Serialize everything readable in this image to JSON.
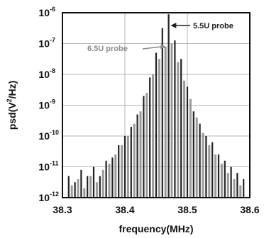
{
  "chart_data": {
    "type": "line",
    "title": "",
    "xlabel": "frequency(MHz)",
    "ylabel_base": "psd(V",
    "ylabel_sup": "2",
    "ylabel_tail": "/Hz)",
    "xlim": [
      38.3,
      38.6
    ],
    "ylim_log10": [
      -12,
      -6
    ],
    "y_scale": "log",
    "grid": true,
    "x_ticks": [
      {
        "value": 38.3,
        "label": "38.3"
      },
      {
        "value": 38.4,
        "label": "38.4"
      },
      {
        "value": 38.5,
        "label": "38.5"
      },
      {
        "value": 38.6,
        "label": "38.6"
      }
    ],
    "y_ticks": [
      {
        "exp": -6,
        "base": "10",
        "sup": "-6"
      },
      {
        "exp": -7,
        "base": "10",
        "sup": "-7"
      },
      {
        "exp": -8,
        "base": "10",
        "sup": "-8"
      },
      {
        "exp": -9,
        "base": "10",
        "sup": "-9"
      },
      {
        "exp": -10,
        "base": "10",
        "sup": "-10"
      },
      {
        "exp": -11,
        "base": "10",
        "sup": "-11"
      },
      {
        "exp": -12,
        "base": "10",
        "sup": "-12"
      }
    ],
    "series": [
      {
        "name": "5.5U probe",
        "color": "#222222",
        "x": [
          38.31,
          38.32,
          38.33,
          38.34,
          38.35,
          38.36,
          38.37,
          38.38,
          38.39,
          38.4,
          38.41,
          38.42,
          38.43,
          38.44,
          38.45,
          38.46,
          38.47,
          38.48,
          38.49,
          38.5,
          38.51,
          38.52,
          38.53,
          38.54,
          38.55,
          38.56,
          38.57,
          38.58,
          38.59
        ],
        "log10_y": [
          -11.3,
          -11.5,
          -11.1,
          -11.3,
          -11.0,
          -11.3,
          -10.8,
          -10.7,
          -10.3,
          -10.0,
          -9.7,
          -9.3,
          -8.7,
          -8.1,
          -7.3,
          -6.5,
          -6.05,
          -6.9,
          -7.5,
          -8.4,
          -9.2,
          -9.6,
          -10.0,
          -10.2,
          -10.6,
          -10.8,
          -11.0,
          -11.2,
          -11.4
        ]
      },
      {
        "name": "6.5U probe",
        "color": "#9a9a9a",
        "x": [
          38.315,
          38.325,
          38.335,
          38.345,
          38.355,
          38.365,
          38.375,
          38.385,
          38.395,
          38.405,
          38.415,
          38.425,
          38.435,
          38.445,
          38.455,
          38.465,
          38.475,
          38.485,
          38.495,
          38.505,
          38.515,
          38.525,
          38.535,
          38.545,
          38.555,
          38.565,
          38.575,
          38.585
        ],
        "log10_y": [
          -11.6,
          -11.4,
          -11.7,
          -11.3,
          -11.5,
          -11.1,
          -10.9,
          -10.6,
          -10.3,
          -10.0,
          -9.6,
          -9.2,
          -8.6,
          -8.0,
          -7.5,
          -7.1,
          -7.0,
          -7.6,
          -8.2,
          -8.8,
          -9.4,
          -9.9,
          -10.3,
          -10.6,
          -10.9,
          -11.2,
          -11.4,
          -11.6
        ]
      }
    ],
    "annotations": [
      {
        "text": "5.5U probe",
        "color": "#222222",
        "points_to_x": 38.472,
        "points_to_log10_y": -6.2
      },
      {
        "text": "6.5U probe",
        "color": "#8a8a8a",
        "points_to_x": 38.468,
        "points_to_log10_y": -7.1
      }
    ]
  }
}
